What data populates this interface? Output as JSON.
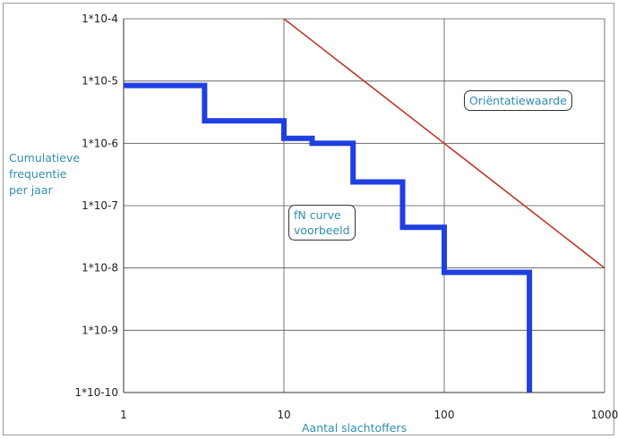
{
  "chart_data": {
    "type": "line",
    "x_scale": "log",
    "y_scale": "log",
    "xlim": [
      1,
      1000
    ],
    "ylim": [
      1e-10,
      0.0001
    ],
    "x_ticks": [
      1,
      10,
      100,
      1000
    ],
    "x_tick_labels": [
      "1",
      "10",
      "100",
      "1000"
    ],
    "y_ticks": [
      0.0001,
      1e-05,
      1e-06,
      1e-07,
      1e-08,
      1e-09,
      1e-10
    ],
    "y_tick_labels": [
      "1*10-4",
      "1*10-5",
      "1*10-6",
      "1*10-7",
      "1*10-8",
      "1*10-9",
      "1*10-10"
    ],
    "xlabel": "Aantal slachtoffers",
    "ylabel_lines": [
      "Cumulatieve",
      "frequentie",
      "per jaar"
    ],
    "grid": true,
    "series": [
      {
        "name": "fN curve voorbeeld",
        "style": "step",
        "color": "#1f3fe0",
        "x": [
          1,
          3.2,
          3.2,
          10,
          10,
          15,
          15,
          27,
          27,
          55,
          55,
          100,
          100,
          340,
          340
        ],
        "y": [
          8.5e-06,
          8.5e-06,
          2.3e-06,
          2.3e-06,
          1.2e-06,
          1.2e-06,
          1e-06,
          1e-06,
          2.4e-07,
          2.4e-07,
          4.5e-08,
          4.5e-08,
          8.5e-09,
          8.5e-09,
          1e-10
        ]
      },
      {
        "name": "Oriëntatiewaarde",
        "style": "line",
        "color": "#c0392b",
        "x": [
          10,
          1000
        ],
        "y": [
          0.0001,
          1e-08
        ]
      }
    ],
    "annotations": [
      {
        "text_lines": [
          "Oriëntatiewaarde"
        ],
        "x": 380,
        "y": 1.6e-05
      },
      {
        "text_lines": [
          "fN curve",
          "voorbeeld"
        ],
        "x": 30,
        "y": 6e-08
      }
    ]
  }
}
